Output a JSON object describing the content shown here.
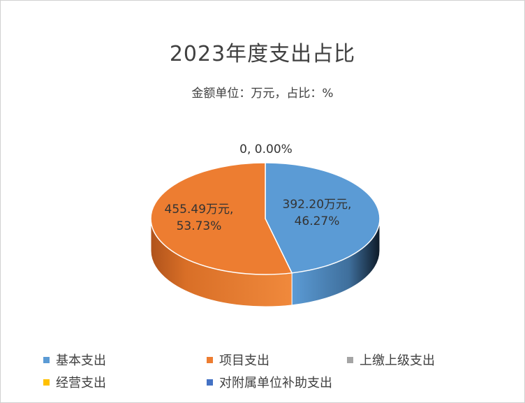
{
  "title": "2023年度支出占比",
  "subtitle": "金额单位：万元，占比：%",
  "chart_data": {
    "type": "pie",
    "title": "2023年度支出占比",
    "subtitle": "金额单位：万元，占比：%",
    "slices": [
      {
        "name": "基本支出",
        "value": 392.2,
        "percent": 46.27,
        "color": "#5B9BD5",
        "label": "392.20万元,\n46.27%"
      },
      {
        "name": "项目支出",
        "value": 455.49,
        "percent": 53.73,
        "color": "#ED7D31",
        "label": "455.49万元,\n53.73%"
      },
      {
        "name": "上缴上级支出",
        "value": 0,
        "percent": 0.0,
        "color": "#A5A5A5",
        "label": "0, 0.00%"
      },
      {
        "name": "经营支出",
        "value": 0,
        "percent": 0.0,
        "color": "#FFC000",
        "label": ""
      },
      {
        "name": "对附属单位补助支出",
        "value": 0,
        "percent": 0.0,
        "color": "#4472C4",
        "label": ""
      }
    ],
    "legend_position": "bottom"
  },
  "legend": [
    {
      "label": "基本支出",
      "color": "#5B9BD5"
    },
    {
      "label": "项目支出",
      "color": "#ED7D31"
    },
    {
      "label": "上缴上级支出",
      "color": "#A5A5A5"
    },
    {
      "label": "经营支出",
      "color": "#FFC000"
    },
    {
      "label": "对附属单位补助支出",
      "color": "#4472C4"
    }
  ]
}
